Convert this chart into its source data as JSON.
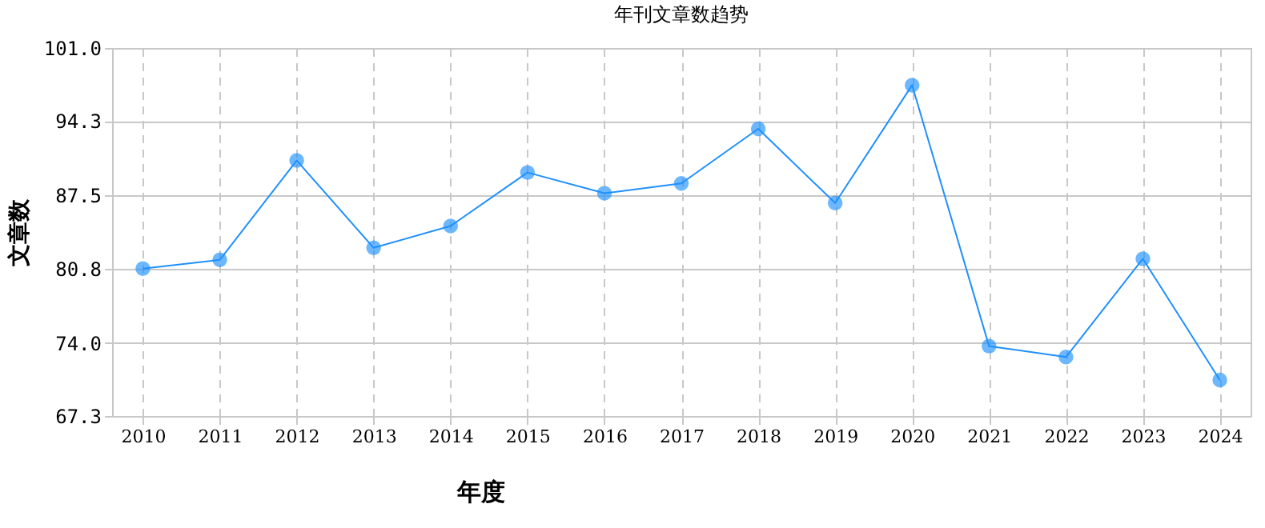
{
  "chart_data": {
    "type": "line",
    "title": "年刊文章数趋势",
    "xlabel": "年度",
    "ylabel": "文章数",
    "categories": [
      "2010",
      "2011",
      "2012",
      "2013",
      "2014",
      "2015",
      "2016",
      "2017",
      "2018",
      "2019",
      "2020",
      "2021",
      "2022",
      "2023",
      "2024"
    ],
    "series": [
      {
        "color": "#1e90ff",
        "values": [
          80.8,
          81.6,
          90.7,
          82.7,
          84.7,
          89.6,
          87.7,
          88.6,
          93.6,
          86.8,
          97.6,
          73.7,
          72.7,
          81.7,
          70.6
        ]
      }
    ],
    "ylim": [
      67.3,
      101.0
    ],
    "yticks": [
      {
        "value": 67.3,
        "label": "67.3"
      },
      {
        "value": 74.0,
        "label": "74.0"
      },
      {
        "value": 80.8,
        "label": "80.8"
      },
      {
        "value": 87.5,
        "label": "87.5"
      },
      {
        "value": 94.3,
        "label": "94.3"
      },
      {
        "value": 101.0,
        "label": "101.0"
      }
    ],
    "grid": true,
    "marker": "circle",
    "line_style": "solid"
  }
}
